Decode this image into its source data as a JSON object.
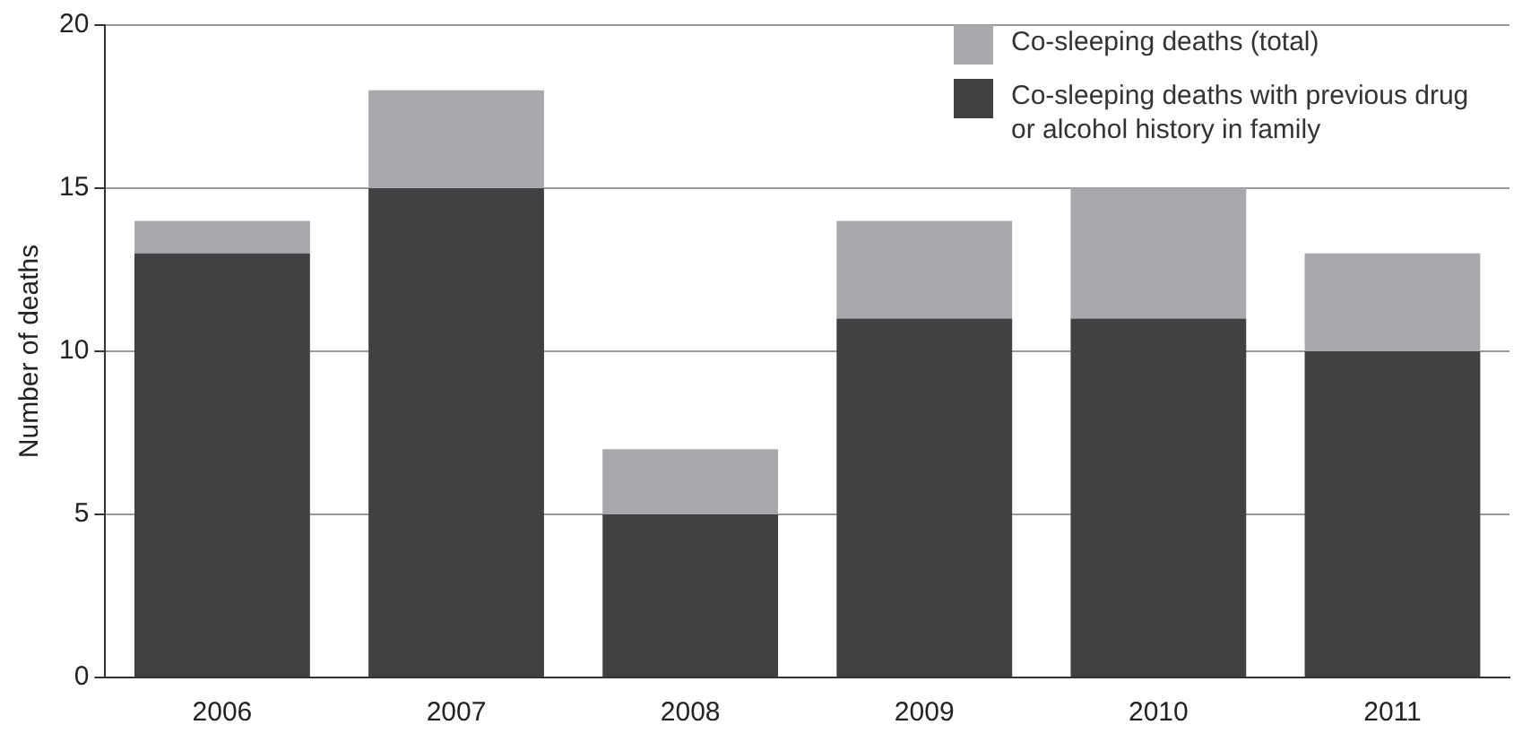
{
  "chart_data": {
    "type": "bar",
    "ylabel": "Number of deaths",
    "categories": [
      "2006",
      "2007",
      "2008",
      "2009",
      "2010",
      "2011"
    ],
    "series": [
      {
        "name": "Co-sleeping deaths with previous drug or alcohol history in family",
        "color": "#414042",
        "values": [
          13,
          15,
          5,
          11,
          11,
          10
        ]
      },
      {
        "name": "Co-sleeping deaths (total)",
        "color": "#a7a9ac",
        "values": [
          1,
          3,
          2,
          3,
          4,
          3
        ]
      }
    ],
    "stacked": true,
    "ylim": [
      0,
      20
    ],
    "yticks": [
      0,
      5,
      10,
      15,
      20
    ],
    "grid": "y",
    "legend": "top right"
  }
}
